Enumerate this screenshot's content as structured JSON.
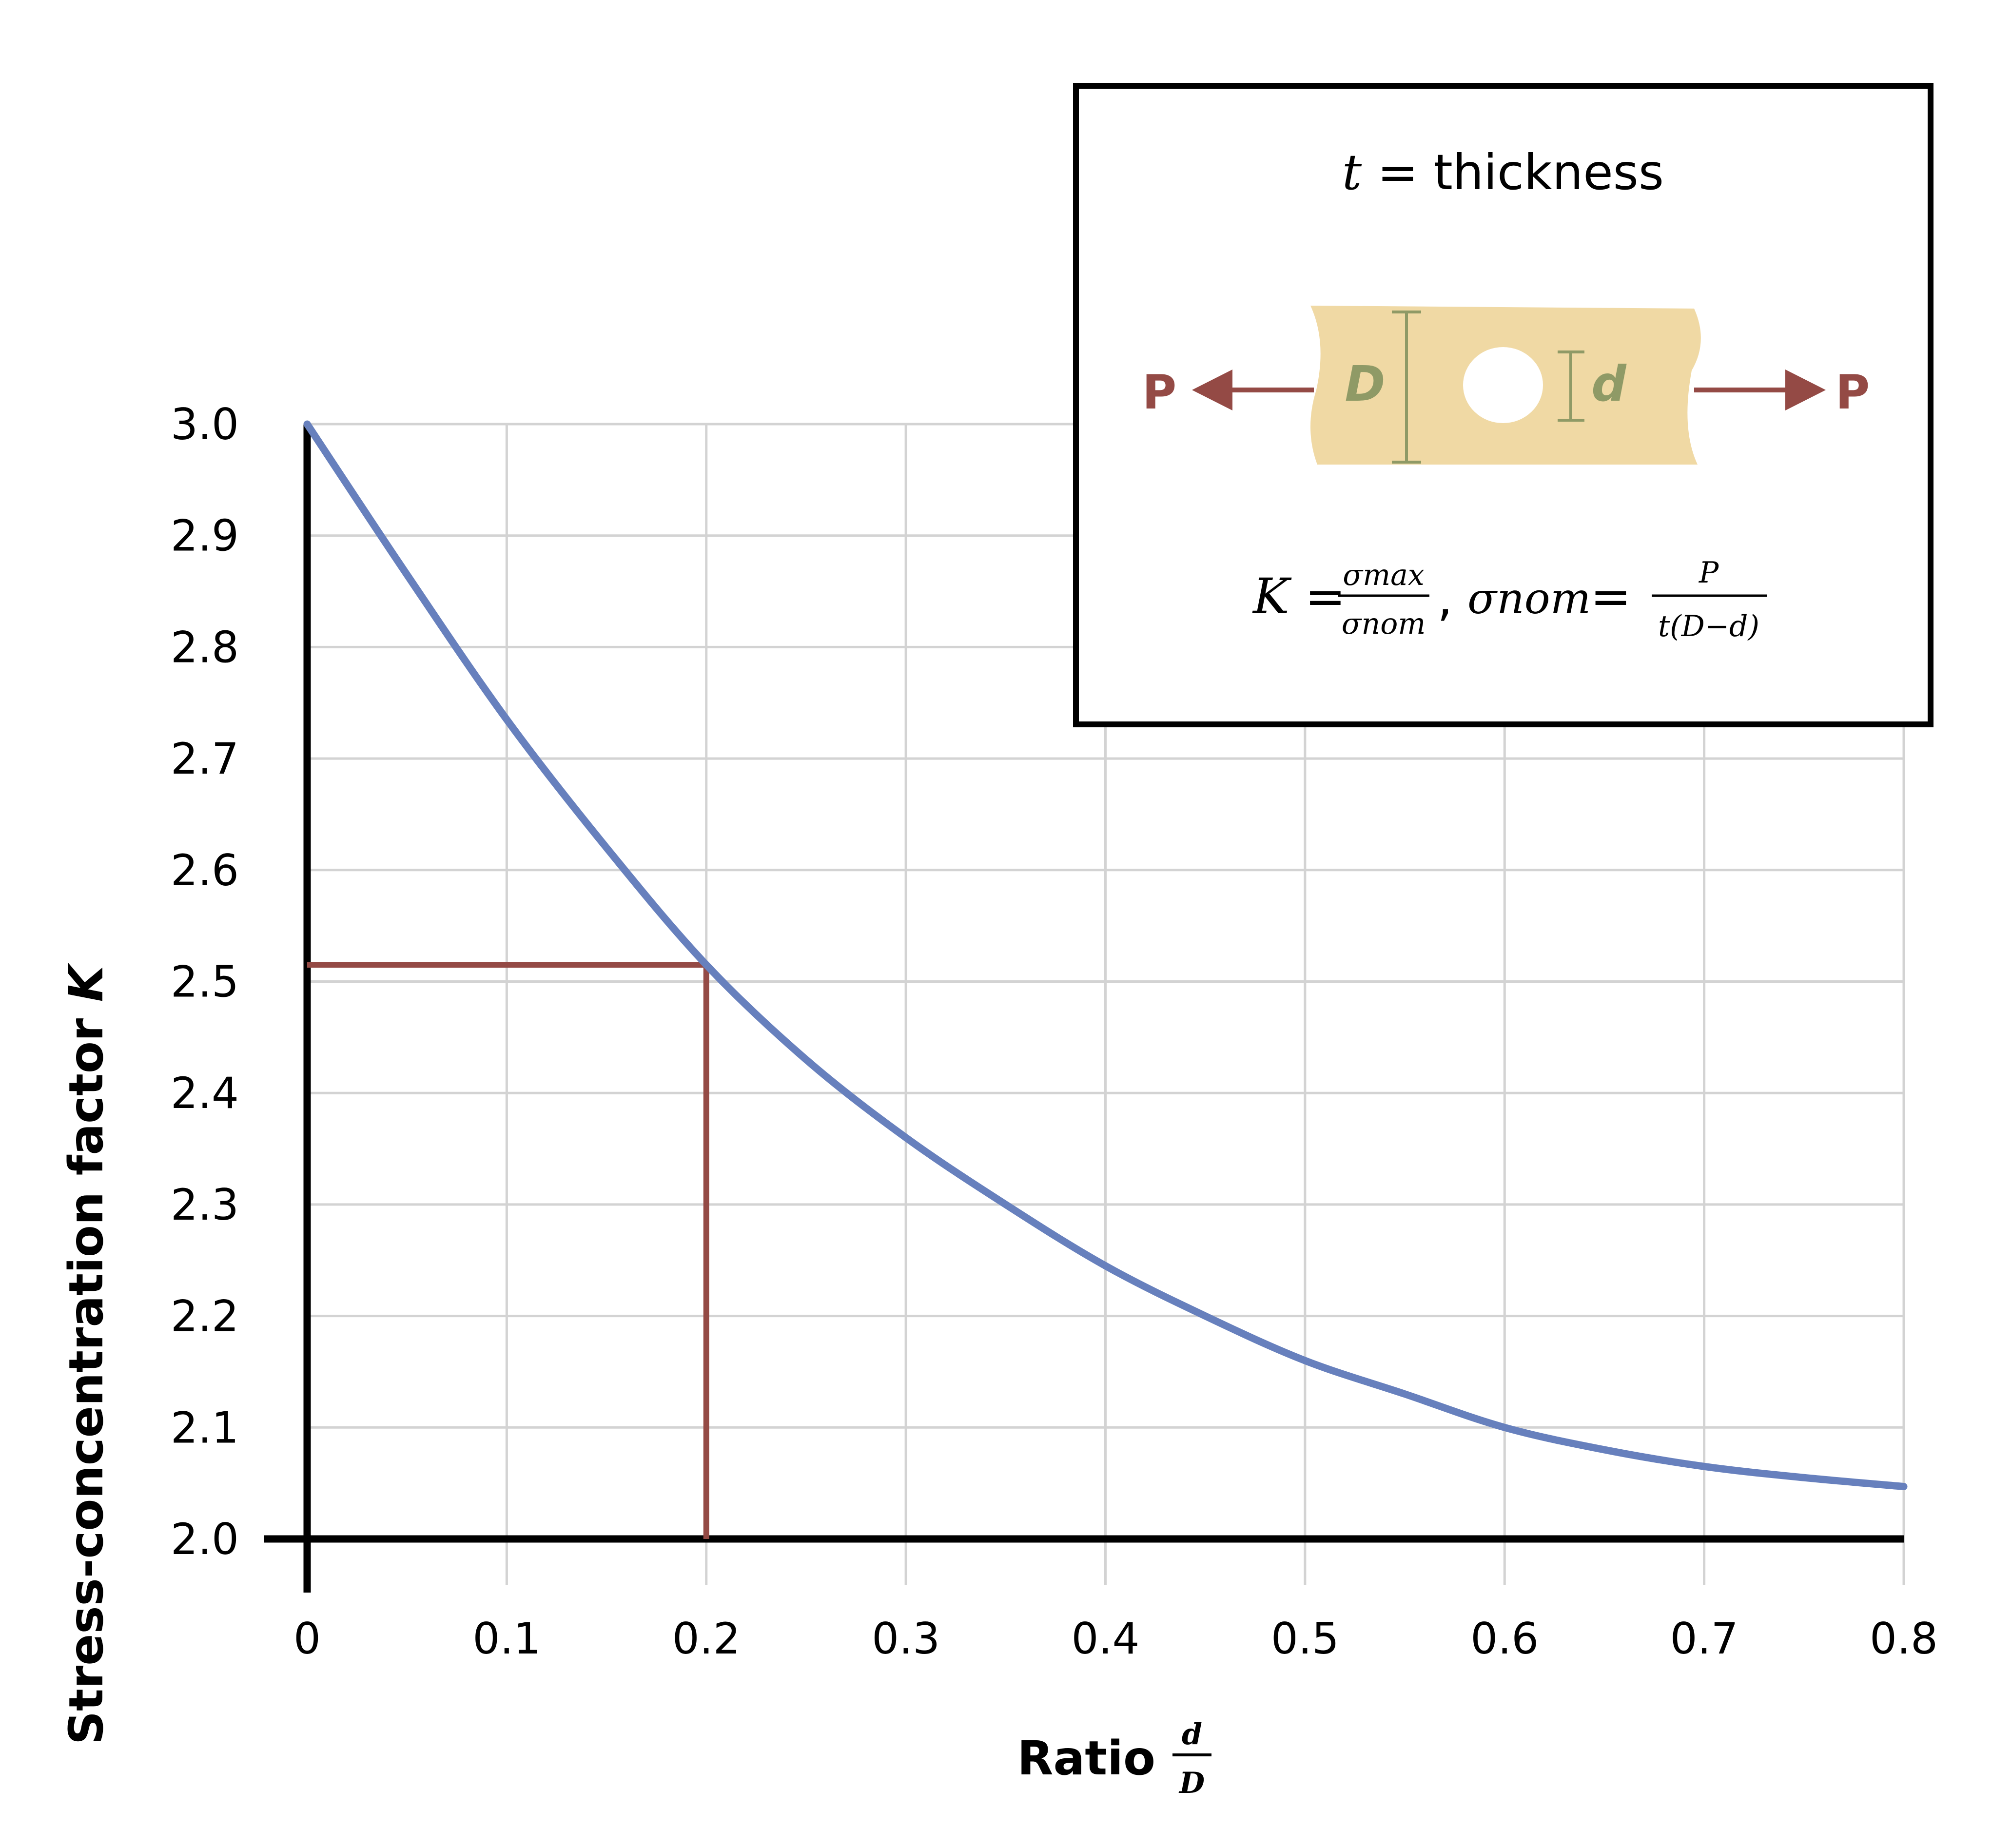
{
  "chart_data": {
    "type": "line",
    "xlabel": "Ratio",
    "xlabel_fraction": {
      "numerator": "d",
      "denominator": "D"
    },
    "ylabel_prefix": "Stress-concentration factor ",
    "ylabel_symbol": "K",
    "xlim": [
      0,
      0.8
    ],
    "ylim": [
      2.0,
      3.0
    ],
    "x_ticks": [
      "0",
      "0.1",
      "0.2",
      "0.3",
      "0.4",
      "0.5",
      "0.6",
      "0.7",
      "0.8"
    ],
    "y_ticks": [
      "2.0",
      "2.1",
      "2.2",
      "2.3",
      "2.4",
      "2.5",
      "2.6",
      "2.7",
      "2.8",
      "2.9",
      "3.0"
    ],
    "grid": true,
    "series": [
      {
        "color": "#6780bd",
        "x": [
          0,
          0.05,
          0.1,
          0.15,
          0.2,
          0.25,
          0.3,
          0.35,
          0.4,
          0.45,
          0.5,
          0.55,
          0.6,
          0.65,
          0.7,
          0.75,
          0.8
        ],
        "y": [
          3.0,
          2.865,
          2.735,
          2.62,
          2.515,
          2.43,
          2.36,
          2.3,
          2.245,
          2.2,
          2.16,
          2.13,
          2.1,
          2.08,
          2.065,
          2.055,
          2.047
        ]
      }
    ],
    "reference_point": {
      "x": 0.2,
      "y": 2.515,
      "color": "#944a45"
    },
    "axis_color": "#000000",
    "grid_color": "#d3d3d3"
  },
  "inset": {
    "thickness_symbol": "t",
    "thickness_text": " = thickness",
    "load_left": "P",
    "load_right": "P",
    "dim_outer": "D",
    "dim_inner": "d",
    "colors": {
      "plate": "#f0d9a4",
      "dimension": "#8f9a66",
      "load": "#944a45"
    },
    "formula": {
      "K": "K",
      "equals": " = ",
      "sigma_max": "σmax",
      "sigma_nom": "σnom",
      "comma": ",",
      "sigma_nom_lhs": "σnom",
      "equals2": "=",
      "P": "P",
      "denominator": "t(D−d)"
    }
  }
}
